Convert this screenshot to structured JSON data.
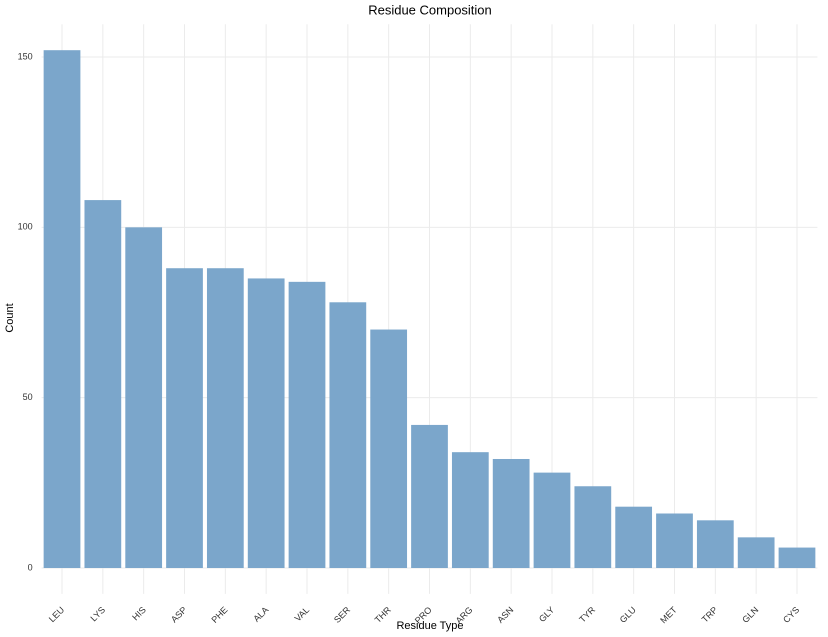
{
  "chart_data": {
    "type": "bar",
    "title": "Residue Composition",
    "x_label": "Residue Type",
    "y_label": "Count",
    "categories": [
      "LEU",
      "LYS",
      "HIS",
      "ASP",
      "PHE",
      "ALA",
      "VAL",
      "SER",
      "THR",
      "PRO",
      "ARG",
      "ASN",
      "GLY",
      "TYR",
      "GLU",
      "MET",
      "TRP",
      "GLN",
      "CYS"
    ],
    "values": [
      152,
      108,
      100,
      88,
      88,
      85,
      84,
      78,
      70,
      42,
      34,
      32,
      28,
      24,
      18,
      16,
      14,
      9,
      6
    ],
    "color": "#7ba6cb",
    "ylim": [
      -7.6,
      159.6
    ],
    "yticks": [
      0,
      50,
      100,
      150
    ],
    "grid": true
  }
}
